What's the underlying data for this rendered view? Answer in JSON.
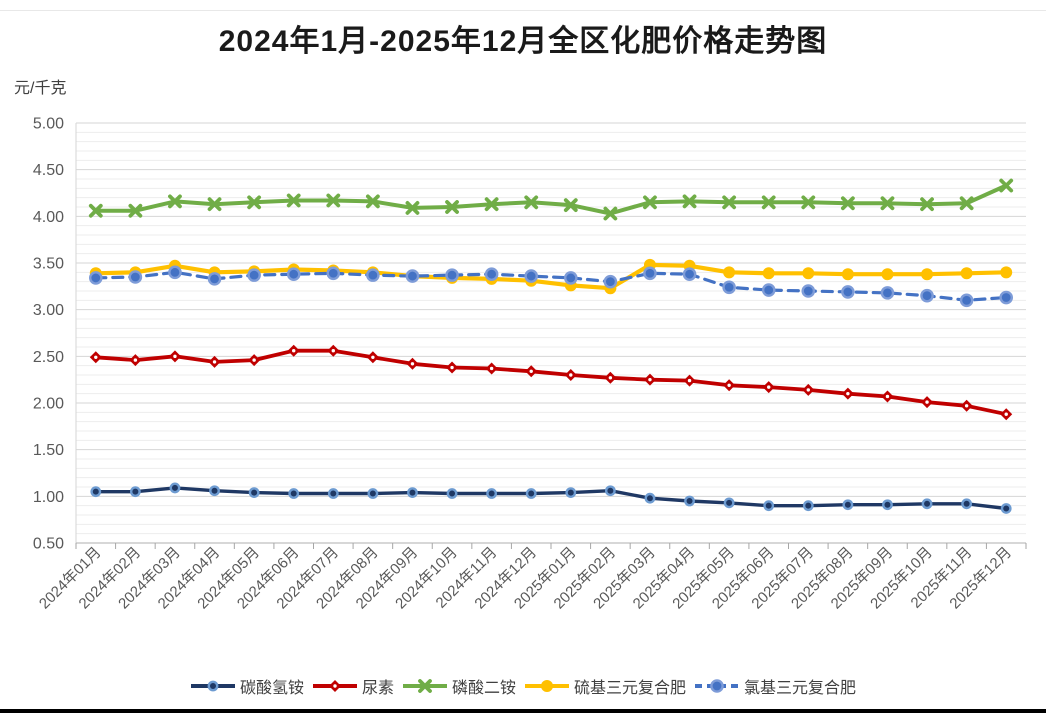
{
  "page": {
    "background": "#FFFFFF",
    "bottom_bar_color": "#000000"
  },
  "chart_data": {
    "type": "line",
    "title": "2024年1月-2025年12月全区化肥价格走势图",
    "ylabel": "元/千克",
    "xlabel": "",
    "ylim": [
      0.5,
      5.0
    ],
    "y_major_step": 0.5,
    "y_minor_step": 0.1,
    "grid": "horizontal major+minor on",
    "legend_position": "bottom",
    "y_tick_labels": [
      "5.00",
      "4.50",
      "4.00",
      "3.50",
      "3.00",
      "2.50",
      "2.00",
      "1.50",
      "1.00",
      "0.50"
    ],
    "categories": [
      "2024年01月",
      "2024年02月",
      "2024年03月",
      "2024年04月",
      "2024年05月",
      "2024年06月",
      "2024年07月",
      "2024年08月",
      "2024年09月",
      "2024年10月",
      "2024年11月",
      "2024年12月",
      "2025年01月",
      "2025年02月",
      "2025年03月",
      "2025年04月",
      "2025年05月",
      "2025年06月",
      "2025年07月",
      "2025年08月",
      "2025年09月",
      "2025年10月",
      "2025年11月",
      "2025年12月"
    ],
    "series": [
      {
        "name": "碳酸氢铵",
        "color": "#1F3864",
        "marker": "circle",
        "marker_stroke": "#6D9BD1",
        "line_style": "solid",
        "values": [
          1.05,
          1.05,
          1.09,
          1.06,
          1.04,
          1.03,
          1.03,
          1.03,
          1.04,
          1.03,
          1.03,
          1.03,
          1.04,
          1.06,
          0.98,
          0.95,
          0.93,
          0.9,
          0.9,
          0.91,
          0.91,
          0.92,
          0.92,
          0.87
        ]
      },
      {
        "name": "尿素",
        "color": "#C00000",
        "marker": "diamond",
        "marker_stroke": "#FFFFFF",
        "line_style": "solid",
        "values": [
          2.49,
          2.46,
          2.5,
          2.44,
          2.46,
          2.56,
          2.56,
          2.49,
          2.42,
          2.38,
          2.37,
          2.34,
          2.3,
          2.27,
          2.25,
          2.24,
          2.19,
          2.17,
          2.14,
          2.1,
          2.07,
          2.01,
          1.97,
          1.88
        ]
      },
      {
        "name": "磷酸二铵",
        "color": "#70AD47",
        "marker": "x",
        "marker_stroke": "#70AD47",
        "line_style": "solid",
        "values": [
          4.06,
          4.06,
          4.16,
          4.13,
          4.15,
          4.17,
          4.17,
          4.16,
          4.09,
          4.1,
          4.13,
          4.15,
          4.12,
          4.03,
          4.15,
          4.16,
          4.15,
          4.15,
          4.15,
          4.14,
          4.14,
          4.13,
          4.14,
          4.33
        ]
      },
      {
        "name": "硫基三元复合肥",
        "color": "#FFC000",
        "marker": "circle",
        "marker_stroke": "#FFC000",
        "line_style": "solid",
        "values": [
          3.39,
          3.4,
          3.47,
          3.4,
          3.41,
          3.43,
          3.42,
          3.4,
          3.36,
          3.34,
          3.33,
          3.31,
          3.26,
          3.23,
          3.48,
          3.47,
          3.4,
          3.39,
          3.39,
          3.38,
          3.38,
          3.38,
          3.39,
          3.4
        ]
      },
      {
        "name": "氯基三元复合肥",
        "color": "#4472C4",
        "marker": "circle",
        "marker_stroke": "#7E9CD8",
        "line_style": "dashed",
        "values": [
          3.34,
          3.35,
          3.4,
          3.33,
          3.37,
          3.38,
          3.39,
          3.37,
          3.36,
          3.37,
          3.38,
          3.36,
          3.34,
          3.3,
          3.39,
          3.38,
          3.24,
          3.21,
          3.2,
          3.19,
          3.18,
          3.15,
          3.1,
          3.13
        ]
      }
    ]
  }
}
